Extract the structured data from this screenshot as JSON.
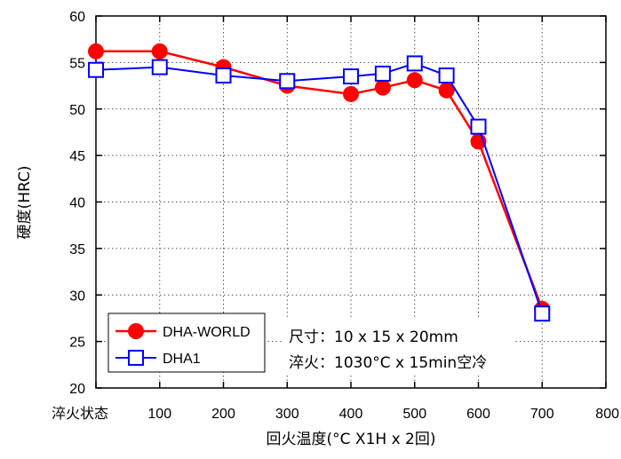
{
  "chart_data": {
    "type": "line",
    "title": "",
    "xlabel": "回火温度(°C X1H x 2回)",
    "ylabel": "硬度(HRC)",
    "xlim": [
      0,
      800
    ],
    "ylim": [
      20,
      60
    ],
    "x_ticks": [
      "淬火状态",
      "100",
      "200",
      "300",
      "400",
      "500",
      "600",
      "700",
      "800"
    ],
    "y_ticks": [
      "20",
      "25",
      "30",
      "35",
      "40",
      "45",
      "50",
      "55",
      "60"
    ],
    "grid": "dotted",
    "legend_position": "bottom-left",
    "series": [
      {
        "name": "DHA-WORLD",
        "color": "#ff0000",
        "marker": "filled-circle",
        "x": [
          0,
          100,
          200,
          300,
          400,
          450,
          500,
          550,
          600,
          700
        ],
        "y": [
          56.2,
          56.2,
          54.5,
          52.5,
          51.6,
          52.3,
          53.1,
          52.0,
          46.5,
          28.5
        ]
      },
      {
        "name": "DHA1",
        "color": "#0000ff",
        "marker": "open-square",
        "x": [
          0,
          100,
          200,
          300,
          400,
          450,
          500,
          550,
          600,
          700
        ],
        "y": [
          54.2,
          54.5,
          53.6,
          53.0,
          53.5,
          53.8,
          54.9,
          53.6,
          48.1,
          28.0
        ]
      }
    ],
    "annotations": {
      "size_label": "尺寸：10 x 15 x 20mm",
      "quench_label": "淬火：1030°C x 15min空冷"
    }
  }
}
